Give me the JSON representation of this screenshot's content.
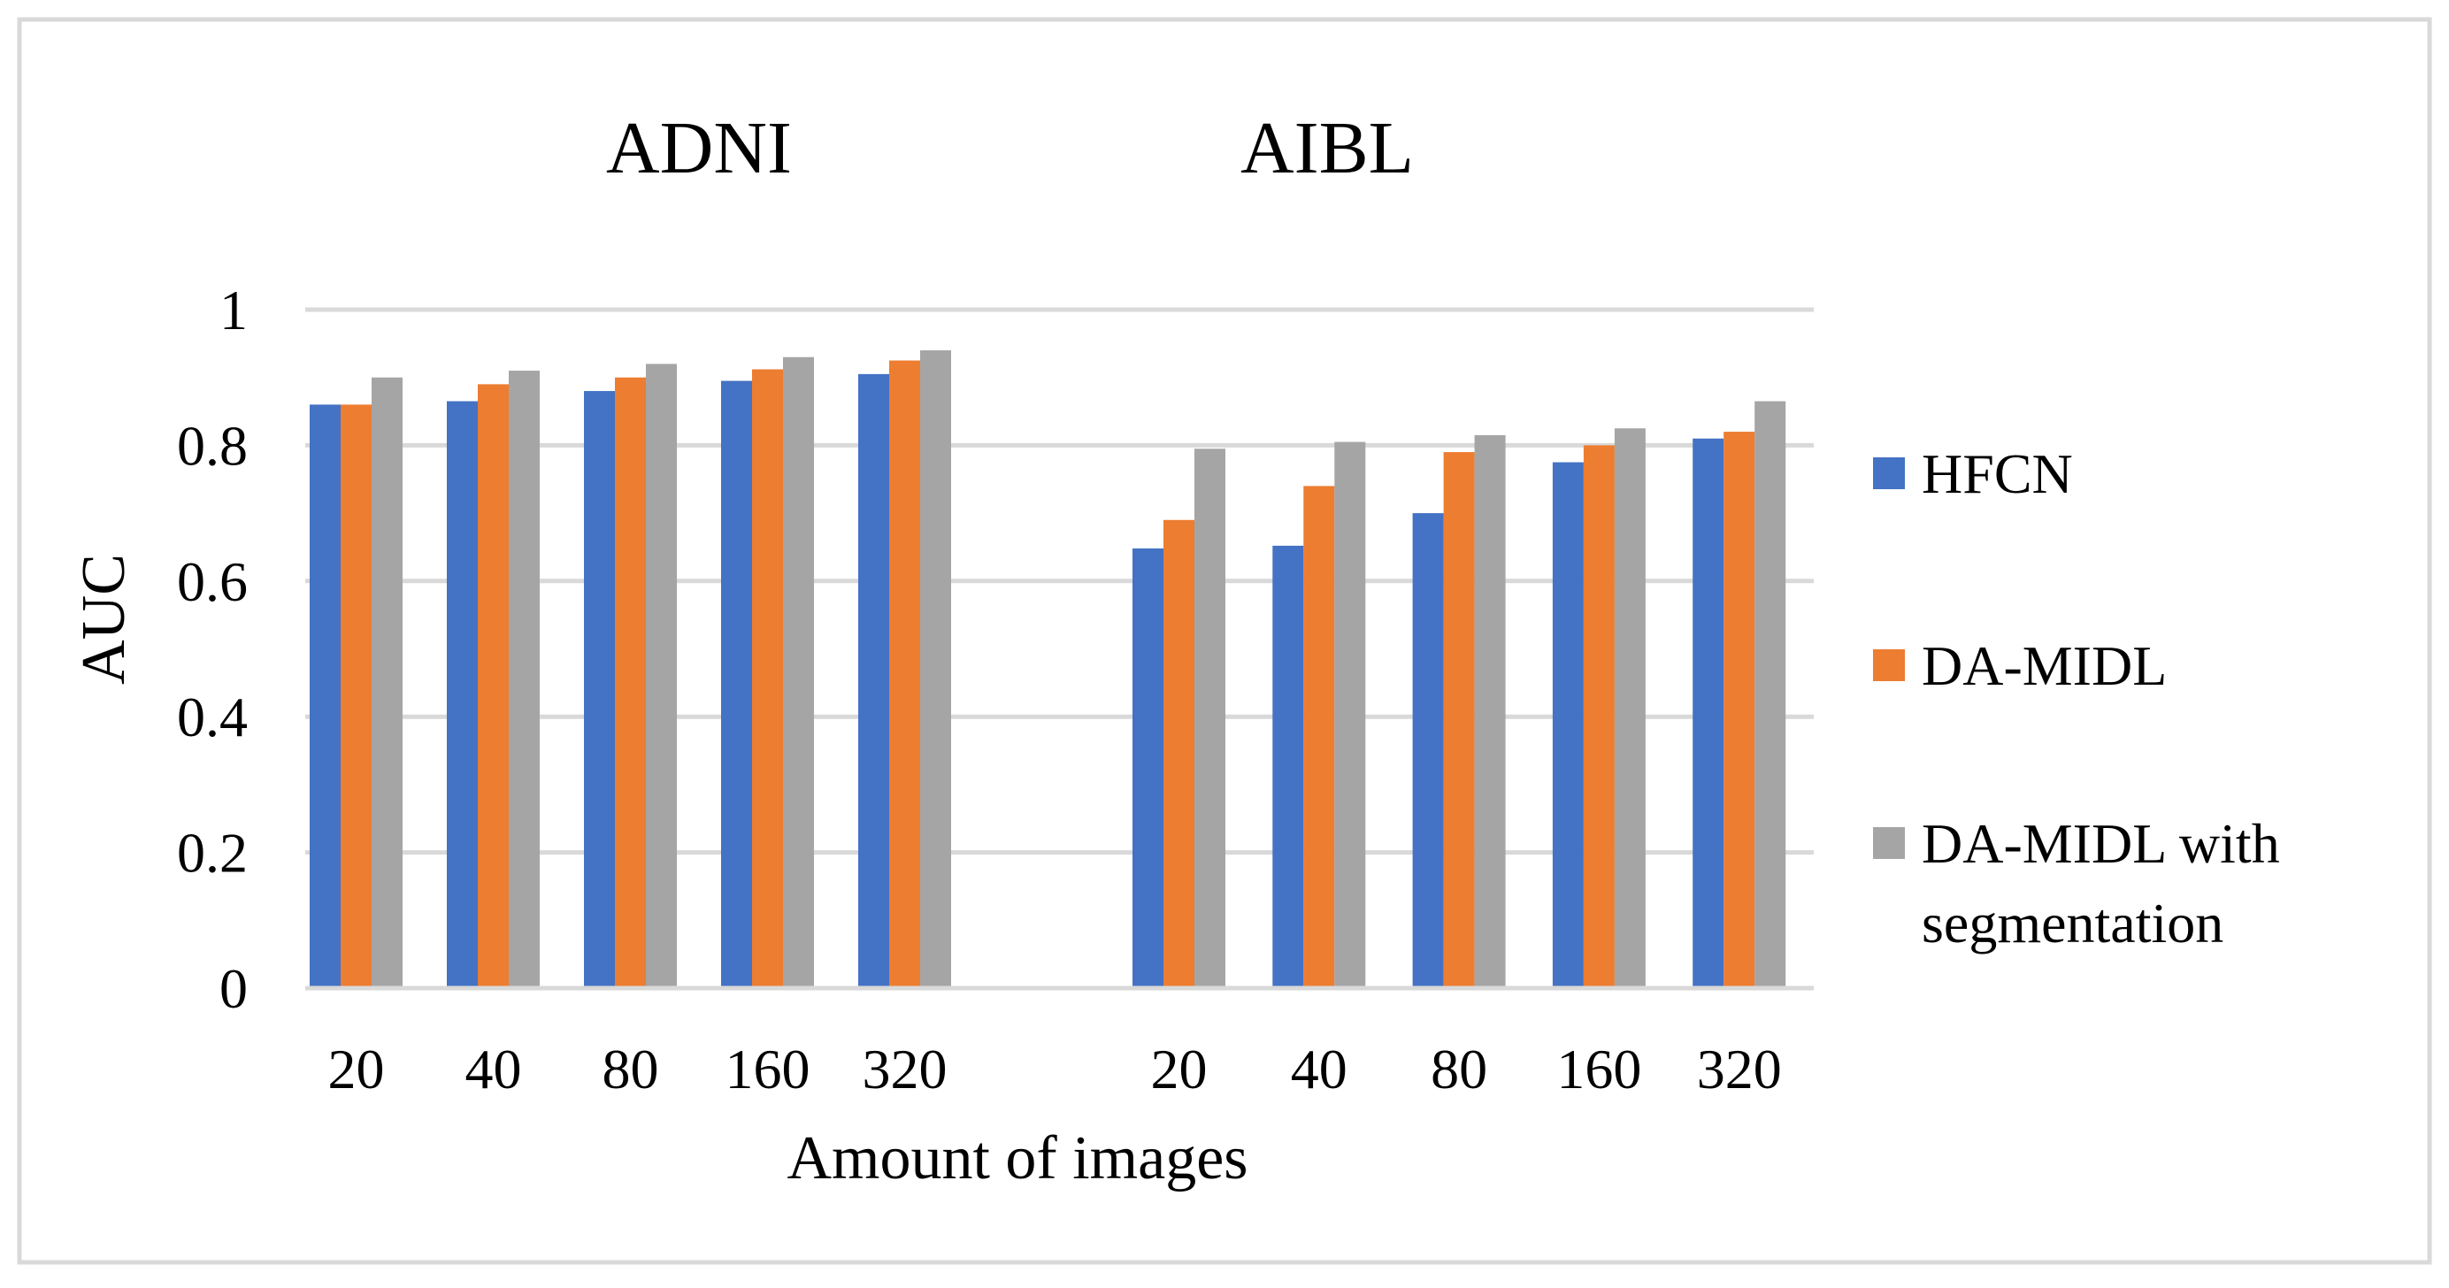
{
  "chart_data": {
    "type": "bar",
    "ylabel": "AUC",
    "xlabel": "Amount of images",
    "ylim": [
      0,
      1
    ],
    "y_ticks": [
      "0",
      "0.2",
      "0.4",
      "0.6",
      "0.8",
      "1"
    ],
    "grid": true,
    "legend_position": "right",
    "groups": [
      {
        "title": "ADNI",
        "categories": [
          "20",
          "40",
          "80",
          "160",
          "320"
        ],
        "series": [
          {
            "name": "HFCN",
            "values": [
              0.86,
              0.865,
              0.88,
              0.895,
              0.905
            ]
          },
          {
            "name": "DA-MIDL",
            "values": [
              0.86,
              0.89,
              0.9,
              0.912,
              0.925
            ]
          },
          {
            "name": "DA-MIDL with segmentation",
            "values": [
              0.9,
              0.91,
              0.92,
              0.93,
              0.94
            ]
          }
        ]
      },
      {
        "title": "AIBL",
        "categories": [
          "20",
          "40",
          "80",
          "160",
          "320"
        ],
        "series": [
          {
            "name": "HFCN",
            "values": [
              0.648,
              0.652,
              0.7,
              0.775,
              0.81
            ]
          },
          {
            "name": "DA-MIDL",
            "values": [
              0.69,
              0.74,
              0.79,
              0.8,
              0.82
            ]
          },
          {
            "name": "DA-MIDL with segmentation",
            "values": [
              0.795,
              0.805,
              0.815,
              0.825,
              0.865
            ]
          }
        ]
      }
    ],
    "legend": [
      {
        "label_lines": [
          "HFCN"
        ],
        "color": "#4472C4"
      },
      {
        "label_lines": [
          "DA-MIDL"
        ],
        "color": "#ED7D31"
      },
      {
        "label_lines": [
          "DA-MIDL with",
          "segmentation"
        ],
        "color": "#A5A5A5"
      }
    ],
    "colors": {
      "HFCN": "#4472C4",
      "DA-MIDL": "#ED7D31",
      "DA-MIDL with segmentation": "#A5A5A5",
      "gridline": "#D9D9D9",
      "frame": "#D9D9D9"
    }
  }
}
